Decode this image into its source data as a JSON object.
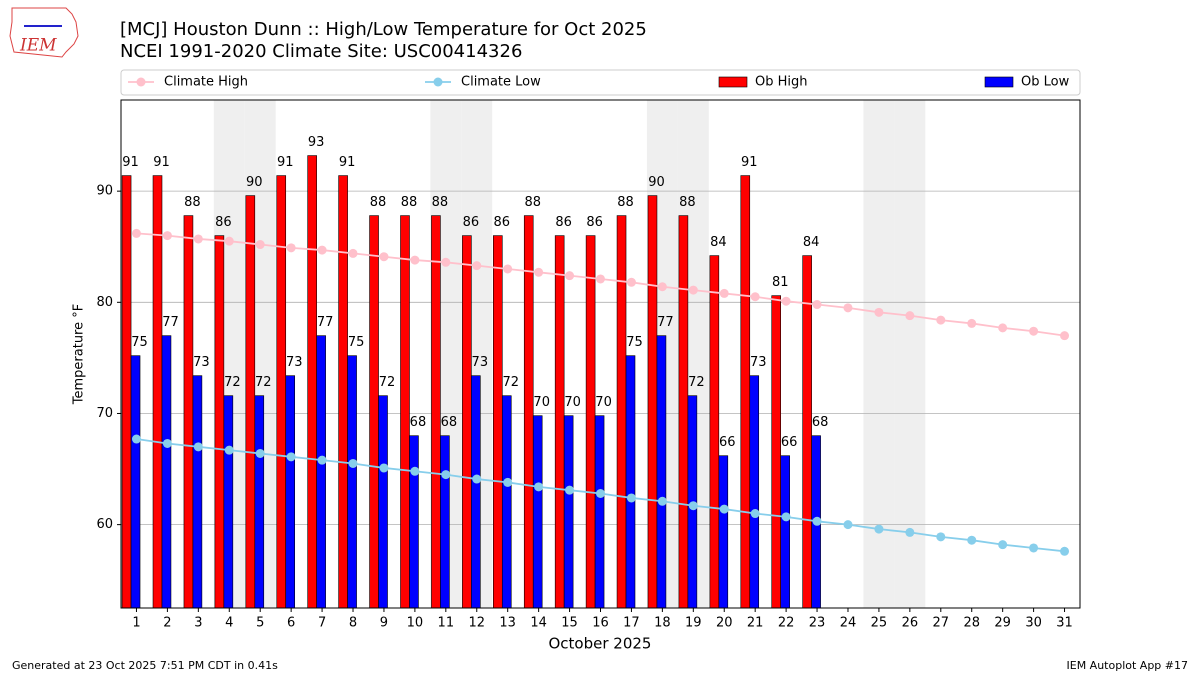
{
  "chart_data": {
    "type": "bar",
    "title": "[MCJ] Houston Dunn :: High/Low Temperature for Oct 2025",
    "subtitle": "NCEI 1991-2020 Climate Site: USC00414326",
    "logo_text": "IEM",
    "xlabel": "October 2025",
    "ylabel": "Temperature °F",
    "footer_left": "Generated at 23 Oct 2025 7:51 PM CDT in 0.41s",
    "footer_right": "IEM Autoplot App #17",
    "x": [
      1,
      2,
      3,
      4,
      5,
      6,
      7,
      8,
      9,
      10,
      11,
      12,
      13,
      14,
      15,
      16,
      17,
      18,
      19,
      20,
      21,
      22,
      23,
      24,
      25,
      26,
      27,
      28,
      29,
      30,
      31
    ],
    "xlim": [
      0.5,
      31.5
    ],
    "xticks": [
      1,
      2,
      3,
      4,
      5,
      6,
      7,
      8,
      9,
      10,
      11,
      12,
      13,
      14,
      15,
      16,
      17,
      18,
      19,
      20,
      21,
      22,
      23,
      24,
      25,
      26,
      27,
      28,
      29,
      30,
      31
    ],
    "ylim": [
      52.5,
      98.2
    ],
    "yticks": [
      60,
      70,
      80,
      90
    ],
    "grid": true,
    "legend": "top",
    "shaded_days": [
      4,
      5,
      11,
      12,
      18,
      19,
      25,
      26
    ],
    "series": [
      {
        "name": "Climate High",
        "type": "line",
        "color": "#ffc0cb",
        "values": [
          86.2,
          86.0,
          85.7,
          85.5,
          85.2,
          84.9,
          84.7,
          84.4,
          84.1,
          83.8,
          83.6,
          83.3,
          83.0,
          82.7,
          82.4,
          82.1,
          81.8,
          81.4,
          81.1,
          80.8,
          80.5,
          80.1,
          79.8,
          79.5,
          79.1,
          78.8,
          78.4,
          78.1,
          77.7,
          77.4,
          77.0
        ]
      },
      {
        "name": "Climate Low",
        "type": "line",
        "color": "#87ceeb",
        "values": [
          67.7,
          67.3,
          67.0,
          66.7,
          66.4,
          66.1,
          65.8,
          65.5,
          65.1,
          64.8,
          64.5,
          64.1,
          63.8,
          63.4,
          63.1,
          62.8,
          62.4,
          62.1,
          61.7,
          61.4,
          61.0,
          60.7,
          60.3,
          60.0,
          59.6,
          59.3,
          58.9,
          58.6,
          58.2,
          57.9,
          57.6
        ]
      },
      {
        "name": "Ob High",
        "type": "bar",
        "color": "#ff0000",
        "values": [
          91.4,
          91.4,
          87.8,
          86.0,
          89.6,
          91.4,
          93.2,
          91.4,
          87.8,
          87.8,
          87.8,
          86.0,
          86.0,
          87.8,
          86.0,
          86.0,
          87.8,
          89.6,
          87.8,
          84.2,
          91.4,
          80.6,
          84.2,
          null,
          null,
          null,
          null,
          null,
          null,
          null,
          null
        ],
        "value_labels": [
          "91",
          "91",
          "88",
          "86",
          "90",
          "91",
          "93",
          "91",
          "88",
          "88",
          "88",
          "86",
          "86",
          "88",
          "86",
          "86",
          "88",
          "90",
          "88",
          "84",
          "91",
          "81",
          "84",
          null,
          null,
          null,
          null,
          null,
          null,
          null,
          null
        ]
      },
      {
        "name": "Ob Low",
        "type": "bar",
        "color": "#0000ff",
        "values": [
          75.2,
          77.0,
          73.4,
          71.6,
          71.6,
          73.4,
          77.0,
          75.2,
          71.6,
          68.0,
          68.0,
          73.4,
          71.6,
          69.8,
          69.8,
          69.8,
          75.2,
          77.0,
          71.6,
          66.2,
          73.4,
          66.2,
          68.0,
          null,
          null,
          null,
          null,
          null,
          null,
          null,
          null
        ],
        "value_labels": [
          "75",
          "77",
          "73",
          "72",
          "72",
          "73",
          "77",
          "75",
          "72",
          "68",
          "68",
          "73",
          "72",
          "70",
          "70",
          "70",
          "75",
          "77",
          "72",
          "66",
          "73",
          "66",
          "68",
          null,
          null,
          null,
          null,
          null,
          null,
          null,
          null
        ]
      }
    ]
  }
}
